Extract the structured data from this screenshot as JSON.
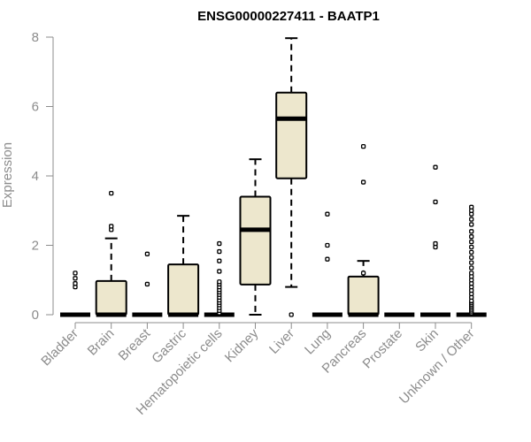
{
  "chart_data": {
    "type": "boxplot",
    "title": "ENSG00000227411 - BAATP1",
    "xlabel": "",
    "ylabel": "Expression",
    "ylim": [
      0,
      8
    ],
    "yticks": [
      0,
      2,
      4,
      6,
      8
    ],
    "grid": false,
    "legend": "none",
    "colors": {
      "box_fill": "#ede7cd",
      "box_stroke": "#000000",
      "axis": "#8c8c8c",
      "title": "#000000"
    },
    "categories": [
      "Bladder",
      "Brain",
      "Breast",
      "Gastric",
      "Hematopoietic cells",
      "Kidney",
      "Liver",
      "Lung",
      "Pancreas",
      "Prostate",
      "Skin",
      "Unknown / Other"
    ],
    "boxes": [
      {
        "category": "Bladder",
        "q1": 0,
        "median": 0,
        "q3": 0,
        "whisker_low": 0,
        "whisker_high": 0,
        "outliers": [
          0.8,
          0.9,
          1.05,
          1.2
        ]
      },
      {
        "category": "Brain",
        "q1": 0,
        "median": 0,
        "q3": 0.97,
        "whisker_low": 0,
        "whisker_high": 2.2,
        "outliers": [
          2.45,
          2.55,
          3.5
        ]
      },
      {
        "category": "Breast",
        "q1": 0,
        "median": 0,
        "q3": 0,
        "whisker_low": 0,
        "whisker_high": 0,
        "outliers": [
          0.88,
          1.75
        ]
      },
      {
        "category": "Gastric",
        "q1": 0,
        "median": 0,
        "q3": 1.45,
        "whisker_low": 0,
        "whisker_high": 2.85,
        "outliers": []
      },
      {
        "category": "Hematopoietic cells",
        "q1": 0,
        "median": 0,
        "q3": 0,
        "whisker_low": 0,
        "whisker_high": 0,
        "outliers": [
          0.05,
          0.12,
          0.2,
          0.28,
          0.35,
          0.42,
          0.5,
          0.58,
          0.65,
          0.72,
          0.8,
          0.88,
          0.95,
          1.25,
          1.55,
          1.82,
          2.05
        ]
      },
      {
        "category": "Kidney",
        "q1": 0.87,
        "median": 2.45,
        "q3": 3.4,
        "whisker_low": 0,
        "whisker_high": 4.48,
        "outliers": []
      },
      {
        "category": "Liver",
        "q1": 3.93,
        "median": 5.65,
        "q3": 6.4,
        "whisker_low": 0.8,
        "whisker_high": 7.97,
        "outliers": [
          0
        ]
      },
      {
        "category": "Lung",
        "q1": 0,
        "median": 0,
        "q3": 0,
        "whisker_low": 0,
        "whisker_high": 0,
        "outliers": [
          1.6,
          2.0,
          2.9
        ]
      },
      {
        "category": "Pancreas",
        "q1": 0,
        "median": 0,
        "q3": 1.1,
        "whisker_low": 0,
        "whisker_high": 1.55,
        "outliers": [
          1.2,
          3.82,
          4.85
        ]
      },
      {
        "category": "Prostate",
        "q1": 0,
        "median": 0,
        "q3": 0,
        "whisker_low": 0,
        "whisker_high": 0,
        "outliers": []
      },
      {
        "category": "Skin",
        "q1": 0,
        "median": 0,
        "q3": 0,
        "whisker_low": 0,
        "whisker_high": 0,
        "outliers": [
          1.95,
          2.05,
          3.25,
          4.25
        ]
      },
      {
        "category": "Unknown / Other",
        "q1": 0,
        "median": 0,
        "q3": 0,
        "whisker_low": 0,
        "whisker_high": 0,
        "outliers": [
          0.05,
          0.1,
          0.15,
          0.2,
          0.25,
          0.3,
          0.35,
          0.4,
          0.5,
          0.6,
          0.7,
          0.8,
          0.9,
          1.0,
          1.1,
          1.2,
          1.35,
          1.5,
          1.65,
          1.8,
          1.95,
          2.1,
          2.25,
          2.4,
          2.6,
          2.75,
          2.9,
          3.0,
          3.1
        ]
      }
    ]
  }
}
